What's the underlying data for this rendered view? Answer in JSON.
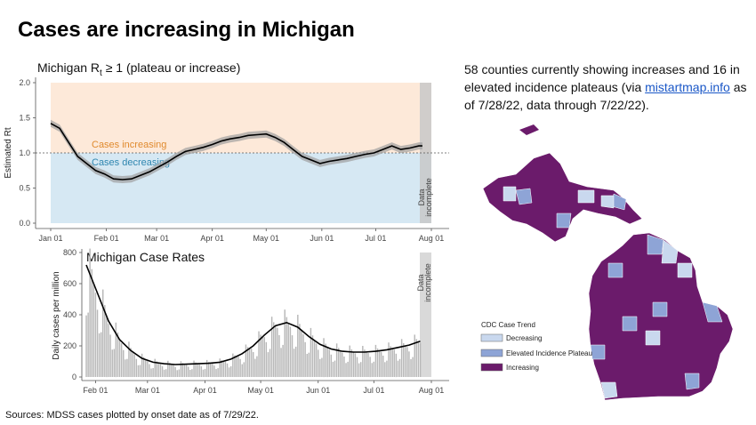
{
  "slide": {
    "title": "Cases are increasing in Michigan",
    "description_before": "58 counties currently showing increases and 16 in elevated incidence plateaus (via ",
    "description_link": "mistartmap.info",
    "description_after": " as of 7/28/22, data through 7/22/22).",
    "footer": "Sources: MDSS cases plotted by onset date as of 7/29/22."
  },
  "colors": {
    "increasing_zone": "#fde9d9",
    "decreasing_zone": "#d6e8f3",
    "increasing_text": "#e08a2e",
    "decreasing_text": "#2f86b0",
    "band": "#9e9e9e",
    "bars": "#b8b8b8",
    "line": "#000000",
    "map_increasing": "#6b1b6b",
    "map_plateau": "#8ea4d6",
    "map_decreasing": "#c9d8ee"
  },
  "chart_data": [
    {
      "type": "line",
      "title_main": "Michigan R",
      "title_sub": "t",
      "title_rest": " ≥ 1 (plateau or increase)",
      "ylabel": "Estimated Rt",
      "ylim": [
        0,
        2.0
      ],
      "yticks": [
        "0.0",
        "0.5",
        "1.0",
        "1.5",
        "2.0"
      ],
      "xticks": [
        "Jan 01",
        "Feb 01",
        "Mar 01",
        "Apr 01",
        "May 01",
        "Jun 01",
        "Jul 01",
        "Aug 01"
      ],
      "zone_labels": {
        "increasing": "Cases increasing",
        "decreasing": "Cases decreasing"
      },
      "incomplete_label_1": "Data",
      "incomplete_label_2": "incomplete",
      "reference_line": 1.0,
      "series": [
        {
          "x": [
            0,
            5,
            10,
            15,
            20,
            25,
            30,
            35,
            40,
            45,
            50,
            55,
            60,
            65,
            70,
            75,
            80,
            85,
            90,
            95,
            100,
            105,
            110,
            115,
            120,
            125,
            130,
            135,
            140,
            145,
            150,
            155,
            160,
            165,
            170,
            175,
            180,
            185,
            190,
            195,
            200,
            205,
            207
          ],
          "y": [
            1.42,
            1.35,
            1.15,
            0.95,
            0.85,
            0.75,
            0.7,
            0.63,
            0.62,
            0.63,
            0.68,
            0.73,
            0.8,
            0.87,
            0.95,
            1.02,
            1.05,
            1.08,
            1.12,
            1.17,
            1.2,
            1.22,
            1.25,
            1.26,
            1.27,
            1.22,
            1.15,
            1.05,
            0.95,
            0.9,
            0.85,
            0.88,
            0.9,
            0.92,
            0.95,
            0.98,
            1.0,
            1.05,
            1.1,
            1.05,
            1.07,
            1.1,
            1.1
          ]
        }
      ]
    },
    {
      "type": "bar",
      "title": "Michigan Case Rates",
      "ylabel": "Daily cases per million",
      "ylim": [
        0,
        800
      ],
      "yticks": [
        "0",
        "200",
        "400",
        "600",
        "800"
      ],
      "xticks": [
        "Feb 01",
        "Mar 01",
        "Apr 01",
        "May 01",
        "Jun 01",
        "Jul 01",
        "Aug 01"
      ],
      "incomplete_label_1": "Data",
      "incomplete_label_2": "incomplete",
      "x": [
        26,
        32,
        38,
        44,
        50,
        56,
        62,
        68,
        74,
        80,
        86,
        92,
        98,
        104,
        110,
        116,
        122,
        128,
        134,
        140,
        146,
        152,
        158,
        164,
        170,
        176,
        182,
        188,
        194,
        200,
        206
      ],
      "values": [
        720,
        540,
        360,
        240,
        170,
        120,
        95,
        85,
        80,
        82,
        85,
        88,
        95,
        115,
        150,
        200,
        270,
        330,
        350,
        320,
        260,
        210,
        180,
        165,
        160,
        160,
        165,
        175,
        190,
        205,
        230
      ]
    }
  ],
  "map": {
    "legend_title": "CDC Case Trend",
    "legend_items": [
      {
        "label": "Decreasing",
        "color": "#c9d8ee"
      },
      {
        "label": "Elevated Incidence Plateau",
        "color": "#8ea4d6"
      },
      {
        "label": "Increasing",
        "color": "#6b1b6b"
      }
    ]
  }
}
